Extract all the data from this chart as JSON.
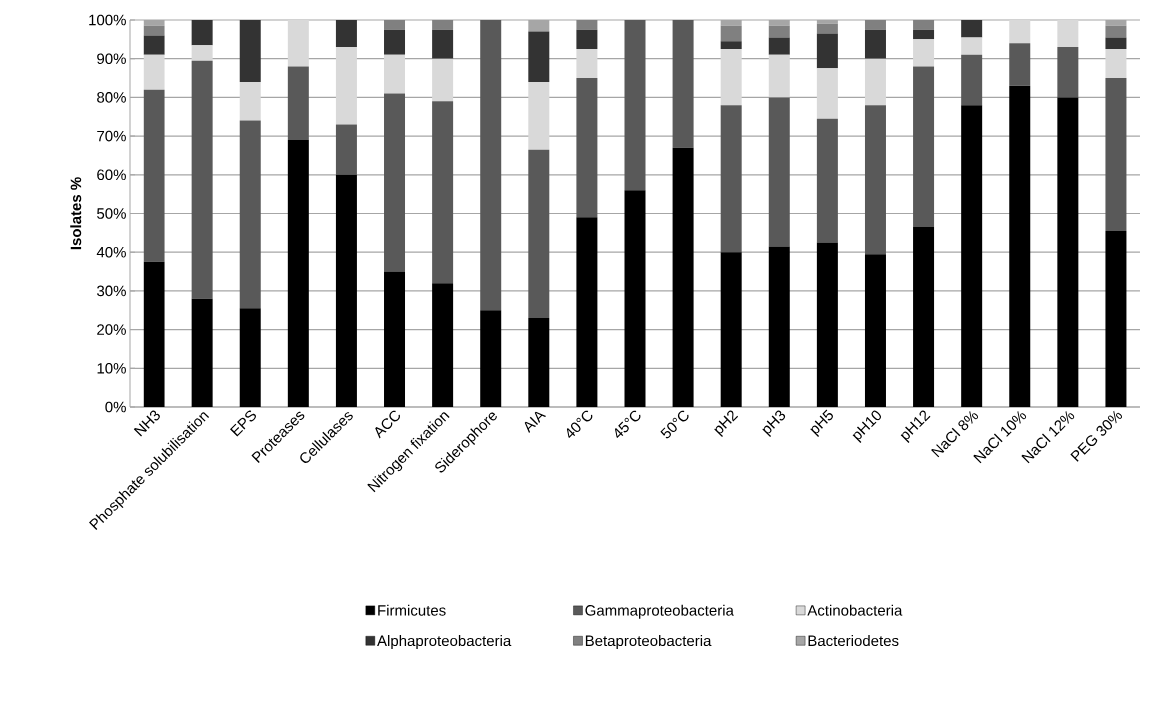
{
  "chart_data": {
    "type": "bar",
    "stacked": true,
    "ylabel": "Isolates %",
    "categories": [
      "NH3",
      "Phosphate solubilisation",
      "EPS",
      "Proteases",
      "Cellulases",
      "ACC",
      "Nitrogen fixation",
      "Siderophore",
      "AIA",
      "40°C",
      "45°C",
      "50°C",
      "pH2",
      "pH3",
      "pH5",
      "pH10",
      "pH12",
      "NaCl 8%",
      "NaCl 10%",
      "NaCl 12%",
      "PEG 30%"
    ],
    "series": [
      {
        "name": "Firmicutes",
        "color": "#000000",
        "values": [
          37.5,
          28,
          25.5,
          69,
          60,
          35,
          32,
          25,
          23,
          49,
          56,
          67,
          40,
          41.5,
          42.5,
          39.5,
          46.5,
          78,
          83,
          80,
          45.5
        ]
      },
      {
        "name": "Gammaproteobacteria",
        "color": "#595959",
        "values": [
          44.5,
          61.5,
          48.5,
          19,
          13,
          46,
          47,
          75,
          43.5,
          36,
          44,
          33,
          38,
          38.5,
          32,
          38.5,
          41.5,
          13,
          11,
          13,
          39.5
        ]
      },
      {
        "name": "Actinobacteria",
        "color": "#d9d9d9",
        "values": [
          9,
          4,
          10,
          12,
          20,
          10,
          11,
          0,
          17.5,
          7.5,
          0,
          0,
          14.5,
          11,
          13,
          12,
          7,
          4.5,
          6,
          7,
          7.5
        ]
      },
      {
        "name": "Alphaproteobacteria",
        "color": "#333333",
        "values": [
          5,
          6.5,
          16,
          0,
          7,
          6.5,
          7.5,
          0,
          13,
          5,
          0,
          0,
          2,
          4.5,
          9,
          7.5,
          2.5,
          4.5,
          0,
          0,
          3
        ]
      },
      {
        "name": "Betaproteobacteria",
        "color": "#808080",
        "values": [
          2.5,
          0,
          0,
          0,
          0,
          2.5,
          2.5,
          0,
          0,
          2.5,
          0,
          0,
          4,
          3,
          2.5,
          2.5,
          2.5,
          0,
          0,
          0,
          3
        ]
      },
      {
        "name": "Bacteriodetes",
        "color": "#a6a6a6",
        "values": [
          1.5,
          0,
          0,
          0,
          0,
          0,
          0,
          0,
          3,
          0,
          0,
          0,
          1.5,
          1.5,
          1,
          0,
          0,
          0,
          0,
          0,
          1.5
        ]
      }
    ],
    "ylim": [
      0,
      100
    ],
    "yticks": [
      {
        "value": 0,
        "label": "0%"
      },
      {
        "value": 10,
        "label": "10%"
      },
      {
        "value": 20,
        "label": "20%"
      },
      {
        "value": 30,
        "label": "30%"
      },
      {
        "value": 40,
        "label": "40%"
      },
      {
        "value": 50,
        "label": "50%"
      },
      {
        "value": 60,
        "label": "60%"
      },
      {
        "value": 70,
        "label": "70%"
      },
      {
        "value": 80,
        "label": "80%"
      },
      {
        "value": 90,
        "label": "90%"
      },
      {
        "value": 100,
        "label": "100%"
      }
    ],
    "grid": "y",
    "legend": "bottom"
  }
}
